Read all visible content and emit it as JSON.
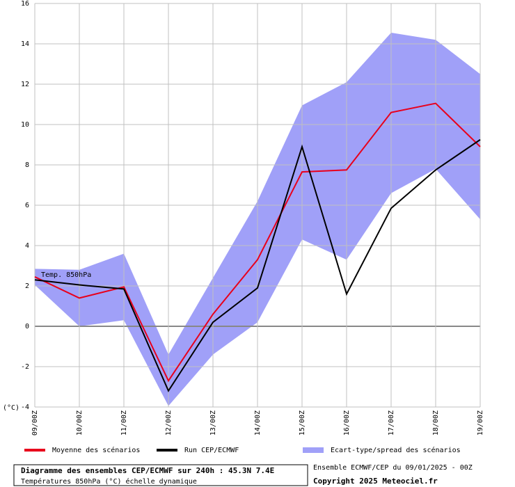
{
  "chart_data": {
    "type": "line",
    "y_label": "(°C)",
    "annotation": "Temp. 850hPa",
    "categories": [
      "09/00Z",
      "10/00Z",
      "11/00Z",
      "12/00Z",
      "13/00Z",
      "14/00Z",
      "15/00Z",
      "16/00Z",
      "17/00Z",
      "18/00Z",
      "19/00Z"
    ],
    "series": [
      {
        "name": "Moyenne des scénarios",
        "color": "#e8001c",
        "values": [
          2.45,
          1.4,
          1.95,
          -2.7,
          0.6,
          3.3,
          7.65,
          7.75,
          10.6,
          11.05,
          8.9
        ]
      },
      {
        "name": "Run CEP/ECMWF",
        "color": "#000000",
        "values": [
          2.3,
          2.05,
          1.85,
          -3.2,
          0.2,
          1.9,
          8.9,
          1.6,
          5.85,
          7.75,
          9.25
        ]
      },
      {
        "name": "Ecart-type/spread des scénarios",
        "color": "#a0a0f8",
        "upper": [
          2.85,
          2.8,
          3.6,
          -1.4,
          2.4,
          6.2,
          10.95,
          12.1,
          14.55,
          14.2,
          12.5
        ],
        "lower": [
          2.05,
          0.0,
          0.3,
          -3.95,
          -1.4,
          0.2,
          4.3,
          3.3,
          6.6,
          7.8,
          5.3
        ]
      }
    ],
    "ylim": [
      -4,
      16
    ],
    "yticks": [
      -4,
      -2,
      0,
      2,
      4,
      6,
      8,
      10,
      12,
      14,
      16
    ],
    "grid": true,
    "legend": "bottom",
    "footer": {
      "title": "Diagramme des ensembles CEP/ECMWF sur 240h : 45.3N 7.4E",
      "subtitle": "Températures 850hPa (°C) échelle dynamique",
      "run": "Ensemble ECMWF/CEP du 09/01/2025 - 00Z",
      "copyright": "Copyright 2025 Meteociel.fr"
    }
  }
}
